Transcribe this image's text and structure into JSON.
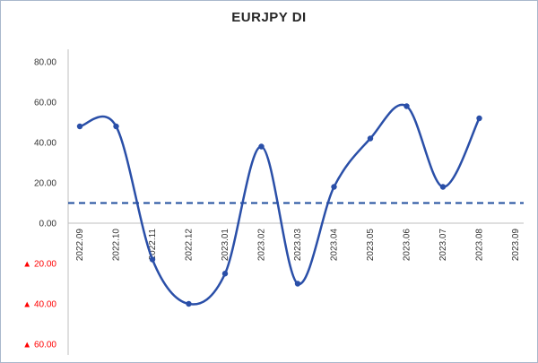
{
  "chart_data": {
    "type": "line",
    "title": "EURJPY DI",
    "categories": [
      "2022.09",
      "2022.10",
      "2022.11",
      "2022.12",
      "2023.01",
      "2023.02",
      "2023.03",
      "2023.04",
      "2023.05",
      "2023.06",
      "2023.07",
      "2023.08",
      "2023.09"
    ],
    "series": [
      {
        "name": "EURJPY DI",
        "values": [
          48,
          48,
          -18,
          -40,
          -25,
          38,
          -30,
          18,
          42,
          58,
          18,
          52,
          null
        ],
        "color": "#2a4fa8",
        "smooth": true,
        "marker": "circle"
      }
    ],
    "threshold_line": {
      "value": 10,
      "color": "#1f4e9e",
      "style": "dashed"
    },
    "ylim": [
      -60,
      80
    ],
    "yticks": [
      {
        "value": 80,
        "label": "80.00",
        "negative": false
      },
      {
        "value": 60,
        "label": "60.00",
        "negative": false
      },
      {
        "value": 40,
        "label": "40.00",
        "negative": false
      },
      {
        "value": 20,
        "label": "20.00",
        "negative": false
      },
      {
        "value": 0,
        "label": "0.00",
        "negative": false
      },
      {
        "value": -20,
        "label": "▲ 20.00",
        "negative": true
      },
      {
        "value": -40,
        "label": "▲ 40.00",
        "negative": true
      },
      {
        "value": -60,
        "label": "▲ 60.00",
        "negative": true
      }
    ],
    "negative_color": "#ff0000",
    "label_color": "#333333",
    "axis_color": "#bfbfbf",
    "grid": false,
    "legend": "none"
  }
}
